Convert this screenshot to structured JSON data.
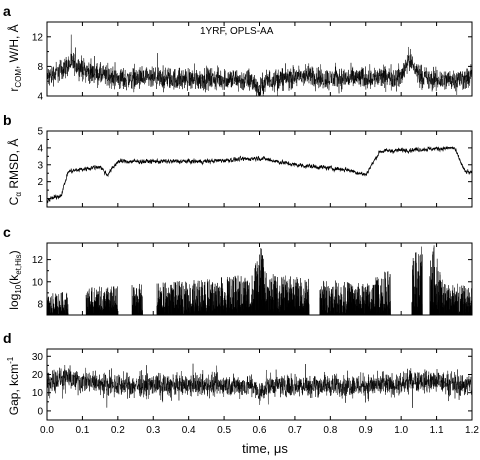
{
  "chart_data": [
    {
      "panel": "a",
      "type": "line",
      "annotation": "1YRF, OPLS-AA",
      "ylabel": "r_COM, W/H, Å",
      "ylabel_parts": {
        "main": "r",
        "sub": "COM",
        "rest": ", W/H, Å"
      },
      "ylim": [
        4,
        14
      ],
      "yticks": [
        4,
        8,
        12
      ],
      "ytick_labels": [
        "4",
        "8",
        "12"
      ],
      "xlim": [
        0,
        1.2
      ],
      "style": "dense-noise",
      "noise_amplitude": 2.2,
      "segments": [
        {
          "x": 0.0,
          "y": 6.5
        },
        {
          "x": 0.04,
          "y": 7.5
        },
        {
          "x": 0.07,
          "y": 8.5
        },
        {
          "x": 0.12,
          "y": 7.2
        },
        {
          "x": 0.2,
          "y": 6.3
        },
        {
          "x": 0.5,
          "y": 6.3
        },
        {
          "x": 0.58,
          "y": 6.0
        },
        {
          "x": 0.6,
          "y": 4.9
        },
        {
          "x": 0.62,
          "y": 6.1
        },
        {
          "x": 0.75,
          "y": 6.8
        },
        {
          "x": 0.78,
          "y": 6.3
        },
        {
          "x": 1.0,
          "y": 6.6
        },
        {
          "x": 1.02,
          "y": 9.0
        },
        {
          "x": 1.05,
          "y": 7.0
        },
        {
          "x": 1.08,
          "y": 6.1
        },
        {
          "x": 1.2,
          "y": 6.4
        }
      ]
    },
    {
      "panel": "b",
      "type": "line",
      "ylabel": "Cα RMSD, Å",
      "ylabel_parts": {
        "main": "C",
        "sub": "α",
        "rest": " RMSD, Å"
      },
      "ylim": [
        0.5,
        5
      ],
      "yticks": [
        1,
        2,
        3,
        4,
        5
      ],
      "ytick_labels": [
        "1",
        "2",
        "3",
        "4",
        "5"
      ],
      "xlim": [
        0,
        1.2
      ],
      "style": "line-noise",
      "noise_amplitude": 0.35,
      "segments": [
        {
          "x": 0.0,
          "y": 0.9
        },
        {
          "x": 0.04,
          "y": 1.2
        },
        {
          "x": 0.06,
          "y": 2.6
        },
        {
          "x": 0.15,
          "y": 2.9
        },
        {
          "x": 0.17,
          "y": 2.4
        },
        {
          "x": 0.2,
          "y": 3.2
        },
        {
          "x": 0.45,
          "y": 3.2
        },
        {
          "x": 0.6,
          "y": 3.4
        },
        {
          "x": 0.7,
          "y": 3.0
        },
        {
          "x": 0.85,
          "y": 2.7
        },
        {
          "x": 0.9,
          "y": 2.4
        },
        {
          "x": 0.94,
          "y": 3.8
        },
        {
          "x": 1.15,
          "y": 4.0
        },
        {
          "x": 1.18,
          "y": 2.6
        },
        {
          "x": 1.2,
          "y": 2.5
        }
      ]
    },
    {
      "panel": "c",
      "type": "line",
      "ylabel": "log10(k_et,His)",
      "ylabel_parts": {
        "main": "log",
        "sub": "10",
        "rest": "(k",
        "sub2": "et,His",
        "rest2": ")"
      },
      "ylim": [
        7,
        13.5
      ],
      "yticks": [
        8,
        10,
        12
      ],
      "ytick_labels": [
        "8",
        "10",
        "12"
      ],
      "xlim": [
        0,
        1.2
      ],
      "style": "spikes",
      "baseline": 7.0,
      "gaps": [
        [
          0.06,
          0.11
        ],
        [
          0.2,
          0.24
        ],
        [
          0.27,
          0.31
        ],
        [
          0.74,
          0.77
        ],
        [
          0.97,
          1.03
        ],
        [
          1.06,
          1.08
        ]
      ],
      "segments": [
        {
          "x": 0.0,
          "y": 8.5
        },
        {
          "x": 0.12,
          "y": 9.0
        },
        {
          "x": 0.4,
          "y": 9.5
        },
        {
          "x": 0.58,
          "y": 10.0
        },
        {
          "x": 0.6,
          "y": 12.5
        },
        {
          "x": 0.62,
          "y": 10.0
        },
        {
          "x": 0.9,
          "y": 9.3
        },
        {
          "x": 1.09,
          "y": 12.5
        },
        {
          "x": 1.12,
          "y": 9.5
        },
        {
          "x": 1.2,
          "y": 9.0
        }
      ]
    },
    {
      "panel": "d",
      "type": "line",
      "ylabel": "Gap, kcm⁻¹",
      "ylabel_parts": {
        "main": "Gap, kcm",
        "sup": "-1"
      },
      "ylim": [
        -5,
        34
      ],
      "yticks": [
        0,
        10,
        20,
        30
      ],
      "ytick_labels": [
        "0",
        "10",
        "20",
        "30"
      ],
      "xlim": [
        0,
        1.2
      ],
      "style": "dense-noise",
      "noise_amplitude": 9,
      "segments": [
        {
          "x": 0.0,
          "y": 16
        },
        {
          "x": 0.05,
          "y": 18
        },
        {
          "x": 0.1,
          "y": 16
        },
        {
          "x": 0.2,
          "y": 14
        },
        {
          "x": 0.58,
          "y": 14
        },
        {
          "x": 0.6,
          "y": 9
        },
        {
          "x": 0.62,
          "y": 14
        },
        {
          "x": 1.0,
          "y": 14
        },
        {
          "x": 1.03,
          "y": 17
        },
        {
          "x": 1.2,
          "y": 14
        }
      ]
    }
  ],
  "xaxis": {
    "label": "time, μs",
    "ticks": [
      0.0,
      0.1,
      0.2,
      0.3,
      0.4,
      0.5,
      0.6,
      0.7,
      0.8,
      0.9,
      1.0,
      1.1,
      1.2
    ],
    "tick_labels": [
      "0.0",
      "0.1",
      "0.2",
      "0.3",
      "0.4",
      "0.5",
      "0.6",
      "0.7",
      "0.8",
      "0.9",
      "1.0",
      "1.1",
      "1.2"
    ]
  },
  "colors": {
    "line": "#000000",
    "axis": "#000000",
    "background": "#ffffff"
  }
}
